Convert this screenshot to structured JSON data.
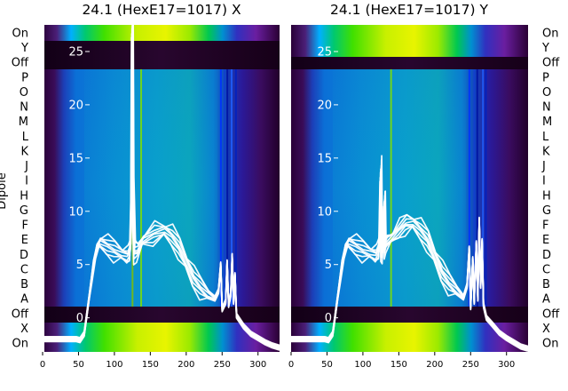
{
  "figure": {
    "y_axis_label": "Dipole",
    "row_labels": [
      "On",
      "Y",
      "Off",
      "P",
      "O",
      "N",
      "M",
      "L",
      "K",
      "J",
      "I",
      "H",
      "G",
      "F",
      "E",
      "D",
      "C",
      "B",
      "A",
      "Off",
      "X",
      "On"
    ]
  },
  "chart_data": [
    {
      "type": "heatmap",
      "title": "24.1 (HexE17=1017) X",
      "colormap": "nipy_spectral",
      "x_ticks": [
        0,
        50,
        100,
        150,
        200,
        250,
        300
      ],
      "x_range": [
        0,
        330
      ],
      "overlay": {
        "type": "line",
        "color": "#ffffff",
        "y_ticks": [
          0,
          5,
          10,
          15,
          20,
          25
        ],
        "y_range": [
          -3.2,
          27.5
        ],
        "n_traces": 8,
        "profile": [
          [
            0,
            -2
          ],
          [
            47,
            -2
          ],
          [
            52,
            -2.1
          ],
          [
            58,
            -1.5
          ],
          [
            65,
            2
          ],
          [
            70,
            4.5
          ],
          [
            75,
            6.3
          ],
          [
            80,
            7.1
          ],
          [
            90,
            6.8
          ],
          [
            100,
            6.3
          ],
          [
            110,
            6.0
          ],
          [
            118,
            5.9
          ],
          [
            122,
            6.3
          ],
          [
            124,
            12
          ],
          [
            125,
            27.5
          ],
          [
            126,
            12
          ],
          [
            128,
            6.2
          ],
          [
            132,
            6.2
          ],
          [
            140,
            7.3
          ],
          [
            155,
            7.9
          ],
          [
            170,
            8.2
          ],
          [
            180,
            7.7
          ],
          [
            190,
            6.6
          ],
          [
            200,
            5.2
          ],
          [
            210,
            3.8
          ],
          [
            220,
            2.8
          ],
          [
            230,
            2.2
          ],
          [
            240,
            1.8
          ],
          [
            245,
            2.5
          ],
          [
            248,
            5
          ],
          [
            250,
            0.8
          ],
          [
            255,
            1.5
          ],
          [
            257,
            5.2
          ],
          [
            259,
            1.2
          ],
          [
            262,
            2.2
          ],
          [
            264,
            5.8
          ],
          [
            266,
            1.5
          ],
          [
            268,
            4
          ],
          [
            270,
            0.2
          ],
          [
            280,
            -0.8
          ],
          [
            290,
            -1.5
          ],
          [
            300,
            -1.9
          ],
          [
            310,
            -2.3
          ],
          [
            320,
            -2.6
          ],
          [
            330,
            -2.8
          ]
        ]
      }
    },
    {
      "type": "heatmap",
      "title": "24.1 (HexE17=1017) Y",
      "colormap": "nipy_spectral",
      "x_ticks": [
        0,
        50,
        100,
        150,
        200,
        250,
        300
      ],
      "x_range": [
        0,
        330
      ],
      "overlay": {
        "type": "line",
        "color": "#ffffff",
        "y_ticks": [
          0,
          5,
          10,
          15,
          20,
          25
        ],
        "y_range": [
          -3.2,
          27.5
        ],
        "n_traces": 8,
        "profile": [
          [
            0,
            -2
          ],
          [
            47,
            -2
          ],
          [
            52,
            -2.1
          ],
          [
            58,
            -1.5
          ],
          [
            65,
            2
          ],
          [
            70,
            4.5
          ],
          [
            75,
            6.3
          ],
          [
            80,
            7.1
          ],
          [
            90,
            6.8
          ],
          [
            100,
            6.3
          ],
          [
            110,
            6.1
          ],
          [
            118,
            6.0
          ],
          [
            123,
            6.6
          ],
          [
            125,
            14
          ],
          [
            126,
            6.5
          ],
          [
            128,
            6.3
          ],
          [
            130,
            11
          ],
          [
            131,
            6.6
          ],
          [
            133,
            7
          ],
          [
            140,
            7.5
          ],
          [
            150,
            8.3
          ],
          [
            160,
            8.8
          ],
          [
            170,
            8.9
          ],
          [
            180,
            8.3
          ],
          [
            190,
            7.3
          ],
          [
            200,
            5.8
          ],
          [
            210,
            4.3
          ],
          [
            220,
            3.2
          ],
          [
            230,
            2.6
          ],
          [
            240,
            1.9
          ],
          [
            245,
            3
          ],
          [
            248,
            6.5
          ],
          [
            250,
            1
          ],
          [
            253,
            5.5
          ],
          [
            255,
            1.5
          ],
          [
            258,
            7
          ],
          [
            260,
            1.8
          ],
          [
            262,
            9.2
          ],
          [
            264,
            3
          ],
          [
            266,
            7.2
          ],
          [
            268,
            1.2
          ],
          [
            272,
            0
          ],
          [
            280,
            -0.6
          ],
          [
            290,
            -1.4
          ],
          [
            300,
            -1.9
          ],
          [
            310,
            -2.3
          ],
          [
            320,
            -2.7
          ],
          [
            330,
            -2.9
          ]
        ]
      }
    }
  ]
}
